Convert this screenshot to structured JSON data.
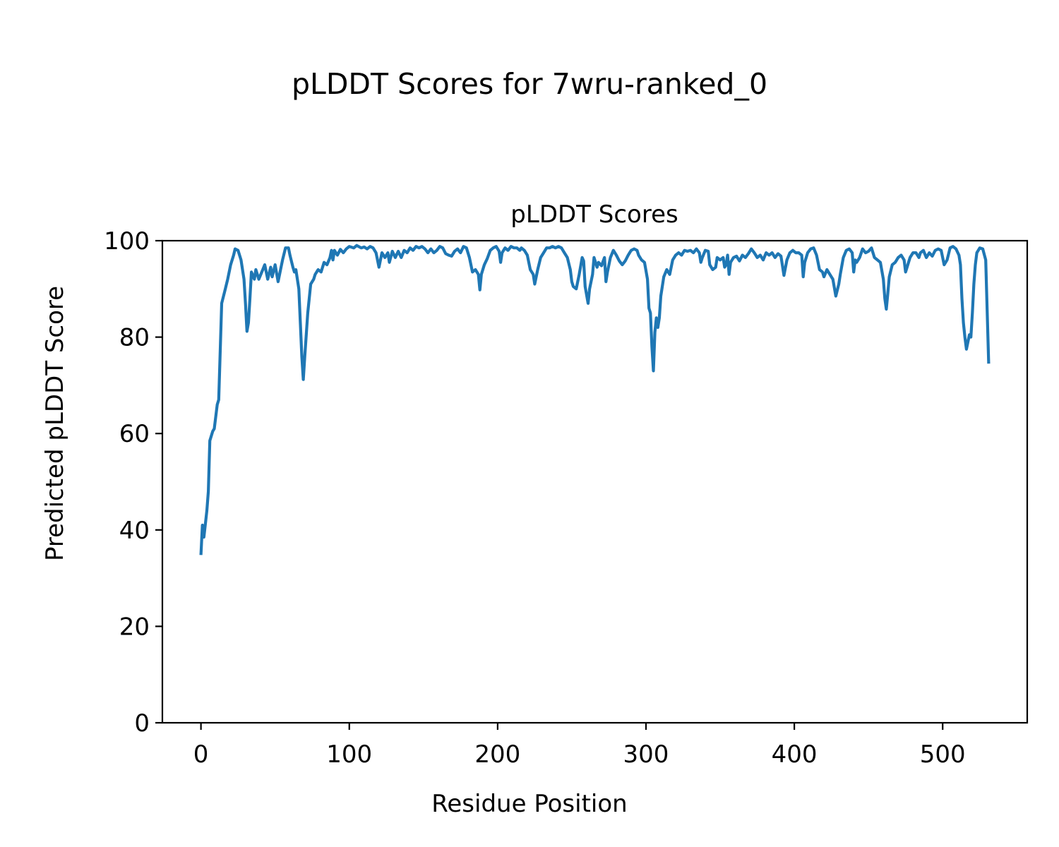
{
  "figure_title": "pLDDT Scores for 7wru-ranked_0",
  "chart_data": {
    "type": "line",
    "title": "pLDDT Scores",
    "xlabel": "Residue Position",
    "ylabel": "Predicted pLDDT Score",
    "xlim": [
      -26,
      557
    ],
    "ylim": [
      0,
      100
    ],
    "xticks": [
      0,
      100,
      200,
      300,
      400,
      500
    ],
    "yticks": [
      0,
      20,
      40,
      60,
      80,
      100
    ],
    "grid": false,
    "line_color": "#1f77b4",
    "points": [
      [
        0,
        34.8
      ],
      [
        1,
        41
      ],
      [
        2,
        38.5
      ],
      [
        4,
        44
      ],
      [
        5,
        48
      ],
      [
        6,
        58.5
      ],
      [
        8,
        60.5
      ],
      [
        9,
        61
      ],
      [
        11,
        66
      ],
      [
        12,
        67
      ],
      [
        14,
        87
      ],
      [
        16,
        89.5
      ],
      [
        18,
        92
      ],
      [
        20,
        95
      ],
      [
        22,
        97
      ],
      [
        23,
        98.3
      ],
      [
        25,
        98
      ],
      [
        27,
        96
      ],
      [
        29,
        92
      ],
      [
        30,
        87
      ],
      [
        31,
        81.2
      ],
      [
        32,
        83
      ],
      [
        33,
        88
      ],
      [
        34,
        93.5
      ],
      [
        36,
        92
      ],
      [
        37,
        94
      ],
      [
        39,
        92
      ],
      [
        41,
        93.5
      ],
      [
        43,
        95
      ],
      [
        45,
        92
      ],
      [
        47,
        94.5
      ],
      [
        48,
        92.5
      ],
      [
        50,
        95
      ],
      [
        52,
        91.5
      ],
      [
        53,
        93
      ],
      [
        55,
        96
      ],
      [
        57,
        98.5
      ],
      [
        59,
        98.5
      ],
      [
        60,
        97
      ],
      [
        62,
        94.5
      ],
      [
        63,
        93.5
      ],
      [
        64,
        94
      ],
      [
        66,
        90
      ],
      [
        67,
        83
      ],
      [
        68,
        76
      ],
      [
        69,
        71.2
      ],
      [
        70,
        76
      ],
      [
        72,
        85
      ],
      [
        74,
        91
      ],
      [
        76,
        92
      ],
      [
        77,
        93
      ],
      [
        79,
        94
      ],
      [
        81,
        93.5
      ],
      [
        83,
        95.5
      ],
      [
        85,
        95
      ],
      [
        87,
        96.5
      ],
      [
        88,
        98
      ],
      [
        89,
        96
      ],
      [
        90,
        98
      ],
      [
        92,
        97
      ],
      [
        94,
        98.2
      ],
      [
        96,
        97.5
      ],
      [
        98,
        98.3
      ],
      [
        100,
        98.8
      ],
      [
        103,
        98.5
      ],
      [
        105,
        99
      ],
      [
        108,
        98.5
      ],
      [
        110,
        98.7
      ],
      [
        112,
        98.3
      ],
      [
        114,
        98.8
      ],
      [
        116,
        98.5
      ],
      [
        118,
        97.5
      ],
      [
        120,
        94.5
      ],
      [
        121,
        96
      ],
      [
        122,
        97.5
      ],
      [
        124,
        96.5
      ],
      [
        126,
        97.5
      ],
      [
        127,
        95.5
      ],
      [
        129,
        97.8
      ],
      [
        131,
        96.5
      ],
      [
        133,
        97.8
      ],
      [
        135,
        96.5
      ],
      [
        137,
        98
      ],
      [
        139,
        97.5
      ],
      [
        141,
        98.5
      ],
      [
        143,
        98
      ],
      [
        145,
        98.8
      ],
      [
        147,
        98.5
      ],
      [
        149,
        98.8
      ],
      [
        151,
        98.3
      ],
      [
        153,
        97.5
      ],
      [
        155,
        98.3
      ],
      [
        157,
        97.5
      ],
      [
        159,
        98
      ],
      [
        161,
        98.8
      ],
      [
        163,
        98.5
      ],
      [
        165,
        97.3
      ],
      [
        167,
        97
      ],
      [
        169,
        96.8
      ],
      [
        171,
        97.8
      ],
      [
        173,
        98.3
      ],
      [
        175,
        97.5
      ],
      [
        177,
        98.8
      ],
      [
        179,
        98.5
      ],
      [
        181,
        96.5
      ],
      [
        183,
        93.5
      ],
      [
        185,
        94
      ],
      [
        187,
        93
      ],
      [
        188,
        89.8
      ],
      [
        189,
        93
      ],
      [
        191,
        95
      ],
      [
        193,
        96.3
      ],
      [
        195,
        98
      ],
      [
        197,
        98.5
      ],
      [
        199,
        98.8
      ],
      [
        201,
        97.8
      ],
      [
        202,
        95.5
      ],
      [
        203,
        97.5
      ],
      [
        205,
        98.5
      ],
      [
        207,
        98
      ],
      [
        209,
        98.8
      ],
      [
        211,
        98.5
      ],
      [
        213,
        98.5
      ],
      [
        215,
        98
      ],
      [
        216,
        98.5
      ],
      [
        218,
        98
      ],
      [
        220,
        97
      ],
      [
        222,
        94
      ],
      [
        224,
        93
      ],
      [
        225,
        91
      ],
      [
        227,
        94
      ],
      [
        229,
        96.5
      ],
      [
        231,
        97.5
      ],
      [
        233,
        98.5
      ],
      [
        235,
        98.5
      ],
      [
        237,
        98.8
      ],
      [
        239,
        98.5
      ],
      [
        241,
        98.8
      ],
      [
        243,
        98.5
      ],
      [
        245,
        97.5
      ],
      [
        247,
        96.5
      ],
      [
        249,
        94
      ],
      [
        250,
        91.5
      ],
      [
        251,
        90.5
      ],
      [
        253,
        90
      ],
      [
        255,
        93
      ],
      [
        257,
        96.5
      ],
      [
        258,
        95.8
      ],
      [
        259,
        90.5
      ],
      [
        261,
        87
      ],
      [
        262,
        90
      ],
      [
        264,
        93
      ],
      [
        265,
        96.5
      ],
      [
        267,
        94.5
      ],
      [
        268,
        95.5
      ],
      [
        270,
        94.8
      ],
      [
        272,
        96.5
      ],
      [
        273,
        91.5
      ],
      [
        274,
        93.5
      ],
      [
        276,
        96.5
      ],
      [
        278,
        98
      ],
      [
        280,
        97
      ],
      [
        282,
        95.8
      ],
      [
        284,
        95
      ],
      [
        286,
        95.8
      ],
      [
        288,
        97
      ],
      [
        290,
        98
      ],
      [
        292,
        98.3
      ],
      [
        294,
        98
      ],
      [
        295,
        97
      ],
      [
        297,
        96
      ],
      [
        299,
        95.5
      ],
      [
        301,
        92
      ],
      [
        302,
        86
      ],
      [
        303,
        85
      ],
      [
        304,
        78
      ],
      [
        305,
        73
      ],
      [
        306,
        81
      ],
      [
        307,
        84
      ],
      [
        308,
        82
      ],
      [
        309,
        84
      ],
      [
        310,
        88.5
      ],
      [
        312,
        92.5
      ],
      [
        314,
        94
      ],
      [
        316,
        93
      ],
      [
        318,
        96
      ],
      [
        320,
        97
      ],
      [
        322,
        97.5
      ],
      [
        324,
        97
      ],
      [
        326,
        98
      ],
      [
        328,
        97.8
      ],
      [
        330,
        98
      ],
      [
        332,
        97.5
      ],
      [
        334,
        98.3
      ],
      [
        336,
        97.5
      ],
      [
        337,
        95.5
      ],
      [
        338,
        96.5
      ],
      [
        340,
        98
      ],
      [
        342,
        97.8
      ],
      [
        343,
        95
      ],
      [
        345,
        94
      ],
      [
        347,
        94.5
      ],
      [
        348,
        96.5
      ],
      [
        350,
        96
      ],
      [
        352,
        96.5
      ],
      [
        353,
        94.5
      ],
      [
        354,
        95
      ],
      [
        355,
        97
      ],
      [
        356,
        93
      ],
      [
        357,
        95.5
      ],
      [
        359,
        96.5
      ],
      [
        361,
        96.8
      ],
      [
        363,
        95.8
      ],
      [
        365,
        97
      ],
      [
        367,
        96.5
      ],
      [
        369,
        97.3
      ],
      [
        371,
        98.3
      ],
      [
        373,
        97.5
      ],
      [
        375,
        96.5
      ],
      [
        377,
        97
      ],
      [
        379,
        96
      ],
      [
        381,
        97.5
      ],
      [
        383,
        97
      ],
      [
        385,
        97.5
      ],
      [
        387,
        96.5
      ],
      [
        389,
        97.3
      ],
      [
        391,
        96.8
      ],
      [
        393,
        92.8
      ],
      [
        395,
        96
      ],
      [
        397,
        97.5
      ],
      [
        399,
        98
      ],
      [
        401,
        97.5
      ],
      [
        403,
        97.5
      ],
      [
        405,
        97
      ],
      [
        406,
        92.5
      ],
      [
        407,
        95.5
      ],
      [
        409,
        97.5
      ],
      [
        411,
        98.3
      ],
      [
        413,
        98.5
      ],
      [
        415,
        97
      ],
      [
        417,
        94
      ],
      [
        419,
        93.5
      ],
      [
        420,
        92.5
      ],
      [
        422,
        94
      ],
      [
        424,
        93
      ],
      [
        426,
        92
      ],
      [
        428,
        88.5
      ],
      [
        430,
        91
      ],
      [
        431,
        93
      ],
      [
        433,
        96.5
      ],
      [
        435,
        98
      ],
      [
        437,
        98.3
      ],
      [
        439,
        97.5
      ],
      [
        440,
        93.5
      ],
      [
        441,
        96
      ],
      [
        442,
        95.5
      ],
      [
        444,
        96.5
      ],
      [
        446,
        98.3
      ],
      [
        448,
        97.5
      ],
      [
        450,
        97.8
      ],
      [
        452,
        98.5
      ],
      [
        454,
        96.5
      ],
      [
        456,
        96
      ],
      [
        458,
        95.5
      ],
      [
        460,
        92
      ],
      [
        461,
        88
      ],
      [
        462,
        85.8
      ],
      [
        463,
        89
      ],
      [
        464,
        92.5
      ],
      [
        466,
        95
      ],
      [
        468,
        95.5
      ],
      [
        470,
        96.5
      ],
      [
        472,
        97
      ],
      [
        474,
        96
      ],
      [
        475,
        93.5
      ],
      [
        476,
        94.5
      ],
      [
        478,
        96.5
      ],
      [
        480,
        97.5
      ],
      [
        482,
        97.5
      ],
      [
        484,
        96.5
      ],
      [
        485,
        97.5
      ],
      [
        487,
        98
      ],
      [
        489,
        96.5
      ],
      [
        491,
        97.5
      ],
      [
        493,
        96.8
      ],
      [
        495,
        98
      ],
      [
        497,
        98.3
      ],
      [
        499,
        98
      ],
      [
        501,
        95
      ],
      [
        503,
        96
      ],
      [
        505,
        98.5
      ],
      [
        507,
        98.8
      ],
      [
        509,
        98.3
      ],
      [
        511,
        97
      ],
      [
        512,
        95
      ],
      [
        513,
        88
      ],
      [
        514,
        83
      ],
      [
        515,
        80
      ],
      [
        516,
        77.5
      ],
      [
        518,
        80.5
      ],
      [
        519,
        80
      ],
      [
        520,
        85
      ],
      [
        521,
        91
      ],
      [
        522,
        95
      ],
      [
        523,
        97.5
      ],
      [
        525,
        98.5
      ],
      [
        527,
        98.3
      ],
      [
        529,
        96
      ],
      [
        531,
        74.5
      ]
    ]
  }
}
